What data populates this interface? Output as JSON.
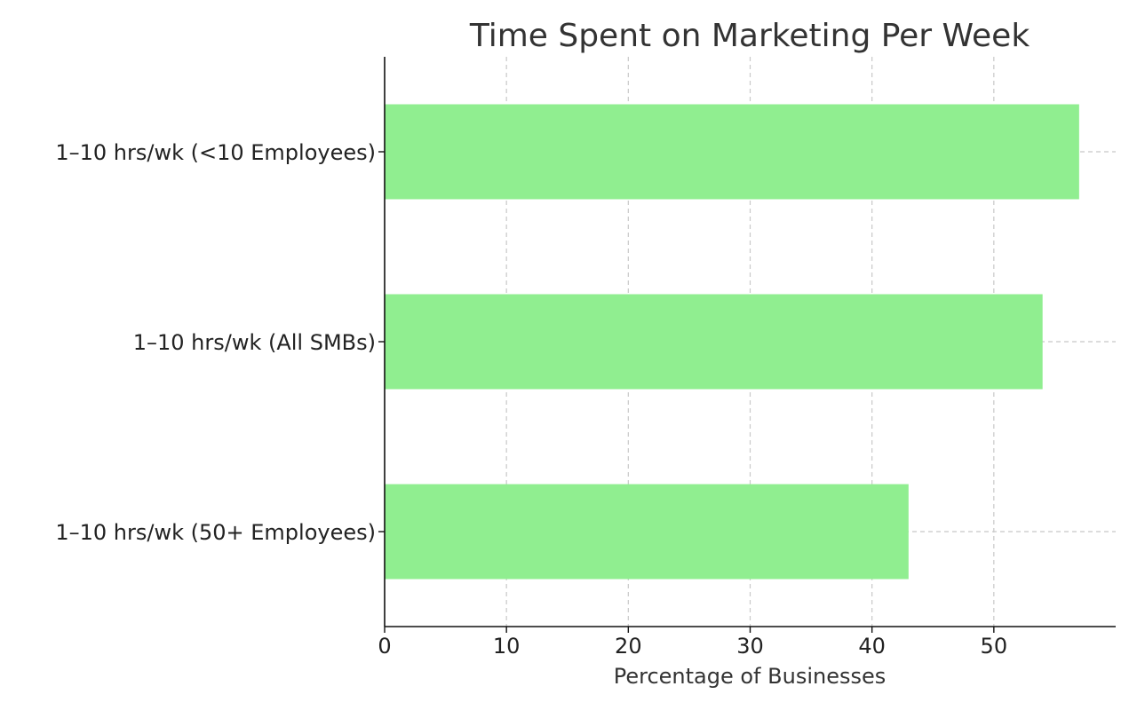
{
  "chart_data": {
    "type": "bar",
    "orientation": "horizontal",
    "title": "Time Spent on Marketing Per Week",
    "xlabel": "Percentage of Businesses",
    "ylabel": "",
    "categories": [
      "1–10 hrs/wk (<10 Employees)",
      "1–10 hrs/wk (All SMBs)",
      "1–10 hrs/wk (50+ Employees)"
    ],
    "values": [
      57,
      54,
      43
    ],
    "xlim": [
      0,
      60
    ],
    "xticks": [
      0,
      10,
      20,
      30,
      40,
      50
    ],
    "grid": true,
    "bar_color": "#90ee90"
  }
}
